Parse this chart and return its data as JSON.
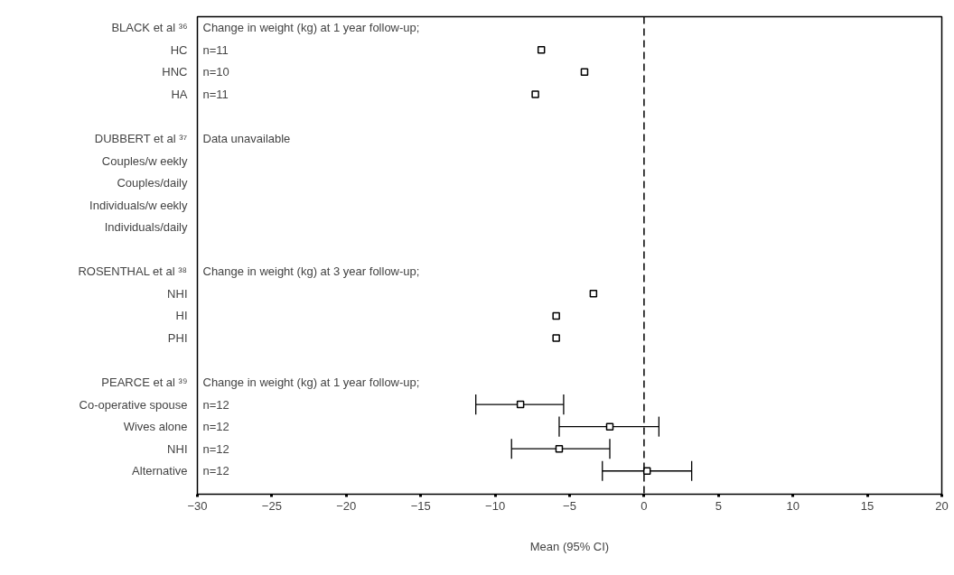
{
  "chart_data": {
    "type": "scatter",
    "orientation": "horizontal",
    "categories": [
      "BLACK et al ³⁶",
      "HC",
      "HNC",
      "HA",
      null,
      "DUBBERT et al ³⁷",
      "Couples/w eekly",
      "Couples/daily",
      "Individuals/w eekly",
      "Individuals/daily",
      null,
      "ROSENTHAL et al ³⁸",
      "NHI",
      "HI",
      "PHI",
      null,
      "PEARCE et al ³⁹",
      "Co-operative spouse",
      "Wives alone",
      "NHI",
      "Alternative"
    ],
    "values": [
      null,
      -6.9,
      -4.0,
      -7.3,
      null,
      null,
      null,
      null,
      null,
      null,
      null,
      null,
      -3.4,
      -5.9,
      -5.9,
      null,
      null,
      -8.3,
      -2.3,
      -5.7,
      0.2
    ],
    "errors": [
      null,
      null,
      null,
      null,
      null,
      null,
      null,
      null,
      null,
      null,
      null,
      null,
      null,
      null,
      null,
      null,
      null,
      [
        -11.3,
        -5.4
      ],
      [
        -5.7,
        1.0
      ],
      [
        -8.9,
        -2.3
      ],
      [
        -2.8,
        3.2
      ]
    ],
    "y2_categories": [
      "Change in weight (kg) at 1 year follow-up;",
      "n=11",
      "n=10",
      "n=11",
      null,
      "Data unavailable",
      null,
      null,
      null,
      null,
      null,
      " Change in weight (kg) at 3 year follow-up;",
      null,
      null,
      null,
      null,
      "Change in weight (kg) at 1 year follow-up;",
      "n=12",
      "n=12",
      "n=12",
      "n=12"
    ],
    "color": "#000000",
    "marker": "square",
    "xlim": [
      -30,
      20
    ],
    "xticks": [
      -30,
      -25,
      -20,
      -15,
      -10,
      -5,
      0,
      5,
      10,
      15,
      20
    ],
    "xlabel": "Mean (95% CI)",
    "grid": false,
    "ref_lines": [
      {
        "axis": "x",
        "value": 0,
        "line_style": "dashed"
      }
    ]
  }
}
